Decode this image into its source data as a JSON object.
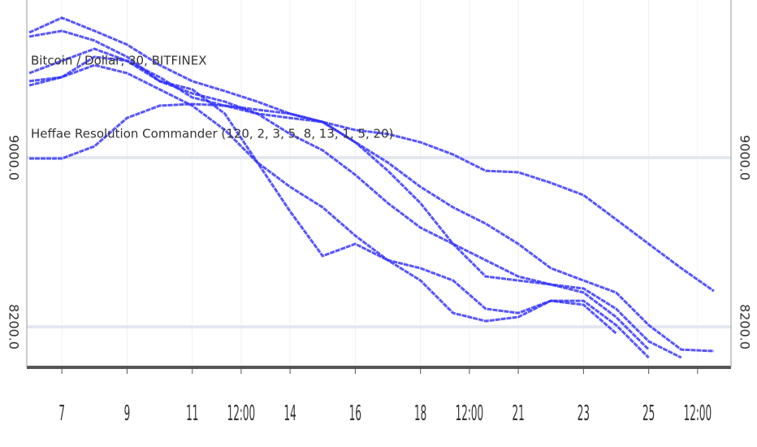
{
  "chart_data": {
    "type": "line",
    "legend_lines": [
      "Bitcoin / Dollar, 30, BITFINEX",
      "Heffae Resolution Commander (120, 2, 3, 5, 8, 13, 1, 5, 20)"
    ],
    "x": [
      6,
      7,
      8,
      9,
      10,
      11,
      12,
      13,
      14,
      15,
      16,
      17,
      18,
      19,
      20,
      21,
      22,
      23,
      24,
      25,
      26,
      27
    ],
    "xlim": [
      5.925,
      27.525
    ],
    "xticks": [
      {
        "value": 7,
        "label": "7"
      },
      {
        "value": 9,
        "label": "9"
      },
      {
        "value": 11,
        "label": "11"
      },
      {
        "value": 12.5,
        "label": "12:00"
      },
      {
        "value": 14,
        "label": "14"
      },
      {
        "value": 16,
        "label": "16"
      },
      {
        "value": 18,
        "label": "18"
      },
      {
        "value": 19.5,
        "label": "12:00"
      },
      {
        "value": 21,
        "label": "21"
      },
      {
        "value": 23,
        "label": "23"
      },
      {
        "value": 25,
        "label": "25"
      },
      {
        "value": 26.5,
        "label": "12:00"
      }
    ],
    "ylim": [
      8008,
      9746
    ],
    "yticks": [
      {
        "value": 9000,
        "label": "9000.0"
      },
      {
        "value": 8200,
        "label": "8200.0"
      }
    ],
    "grid": true,
    "series": [
      {
        "color": "#2a2aff",
        "values": [
          9592,
          9662,
          9600,
          9535,
          9438,
          9362,
          9315,
          9265,
          9208,
          9169,
          9131,
          9112,
          9073,
          9015,
          8938,
          8931,
          8881,
          8823,
          8708,
          8592,
          8477,
          8369
        ]
      },
      {
        "color": "#2a2aff",
        "values": [
          9573,
          9600,
          9554,
          9477,
          9362,
          9304,
          9265,
          9208,
          9188,
          9169,
          9073,
          8977,
          8862,
          8765,
          8688,
          8592,
          8477,
          8419,
          8362,
          8208,
          8092,
          8085
        ]
      },
      {
        "color": "#2a2aff",
        "values": [
          9400,
          9458,
          9515,
          9458,
          9381,
          9285,
          9246,
          9208,
          9112,
          9035,
          8919,
          8785,
          8669,
          8592,
          8515,
          8438,
          8400,
          8381,
          8285,
          8131,
          8054,
          null
        ]
      },
      {
        "color": "#2a2aff",
        "values": [
          9342,
          9381,
          9477,
          9458,
          9362,
          9323,
          9208,
          8977,
          8746,
          8535,
          8592,
          8515,
          8477,
          8419,
          8285,
          8265,
          8323,
          8323,
          8208,
          8054,
          null,
          null
        ]
      },
      {
        "color": "#2a2aff",
        "values": [
          8996,
          8996,
          9054,
          9188,
          9246,
          9254,
          9246,
          9227,
          9208,
          9169,
          9073,
          8938,
          8785,
          8592,
          8438,
          8419,
          8400,
          8362,
          8246,
          8092,
          null,
          null
        ]
      },
      {
        "color": "#2a2aff",
        "values": [
          9362,
          9381,
          9438,
          9400,
          9323,
          9246,
          9131,
          8977,
          8862,
          8765,
          8631,
          8515,
          8419,
          8265,
          8227,
          8246,
          8323,
          8304,
          8169,
          null,
          null,
          null
        ]
      }
    ]
  }
}
